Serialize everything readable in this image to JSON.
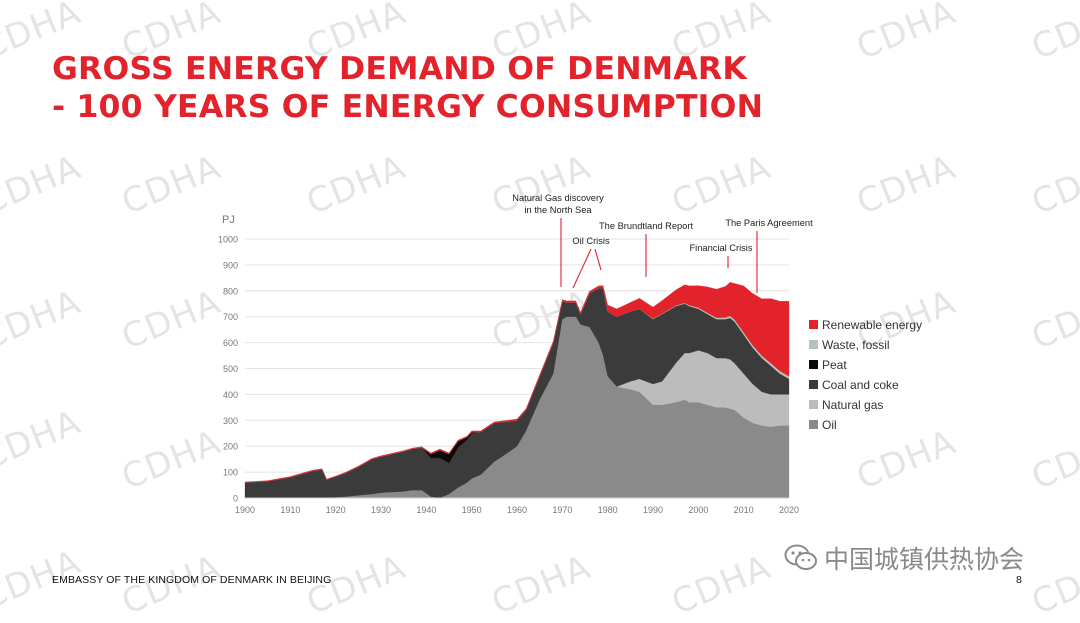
{
  "slide": {
    "title_line1": "GROSS ENERGY DEMAND OF DENMARK",
    "title_line2": "- 100 YEARS OF ENERGY CONSUMPTION",
    "footer": "EMBASSY OF THE KINGDOM OF DENMARK IN BEIJING",
    "page_number": "8",
    "watermark": "CDHA",
    "wechat_label": "中国城镇供热协会",
    "wechat_icon": "wechat-icon"
  },
  "chart_data": {
    "type": "area",
    "stacked": true,
    "ylabel": "PJ",
    "xlabel": "",
    "xlim": [
      1900,
      2020
    ],
    "ylim": [
      0,
      1000
    ],
    "x_ticks": [
      1900,
      1910,
      1920,
      1930,
      1940,
      1950,
      1960,
      1970,
      1980,
      1990,
      2000,
      2010,
      2020
    ],
    "y_ticks": [
      0,
      100,
      200,
      300,
      400,
      500,
      600,
      700,
      800,
      900,
      1000
    ],
    "grid": "horizontal",
    "legend_position": "right",
    "x": [
      1900,
      1905,
      1910,
      1915,
      1917,
      1918,
      1920,
      1922,
      1925,
      1928,
      1930,
      1935,
      1937,
      1939,
      1941,
      1943,
      1945,
      1947,
      1949,
      1950,
      1952,
      1955,
      1958,
      1960,
      1962,
      1965,
      1968,
      1970,
      1971,
      1973,
      1974,
      1976,
      1978,
      1979,
      1980,
      1982,
      1985,
      1987,
      1990,
      1992,
      1995,
      1997,
      1998,
      2000,
      2002,
      2004,
      2006,
      2007,
      2008,
      2010,
      2012,
      2014,
      2016,
      2018,
      2019,
      2020
    ],
    "series": [
      {
        "name": "Oil",
        "color": "#8a8a8a",
        "values": [
          0,
          0,
          0,
          0,
          0,
          1,
          3,
          5,
          10,
          15,
          20,
          25,
          30,
          30,
          5,
          0,
          15,
          40,
          60,
          75,
          90,
          140,
          175,
          200,
          260,
          380,
          480,
          690,
          700,
          700,
          670,
          660,
          600,
          550,
          470,
          430,
          420,
          410,
          360,
          360,
          370,
          380,
          370,
          370,
          360,
          350,
          350,
          345,
          340,
          310,
          290,
          280,
          275,
          280,
          280,
          280
        ]
      },
      {
        "name": "Natural gas",
        "color": "#bcbcbc",
        "values": [
          0,
          0,
          0,
          0,
          0,
          0,
          0,
          0,
          0,
          0,
          0,
          0,
          0,
          0,
          0,
          0,
          0,
          0,
          0,
          0,
          0,
          0,
          0,
          0,
          0,
          0,
          0,
          0,
          0,
          0,
          0,
          0,
          0,
          0,
          0,
          0,
          30,
          50,
          80,
          90,
          150,
          180,
          190,
          200,
          200,
          190,
          190,
          190,
          180,
          170,
          150,
          130,
          125,
          120,
          120,
          120
        ]
      },
      {
        "name": "Coal and coke",
        "color": "#3b3b3b",
        "values": [
          60,
          65,
          80,
          105,
          110,
          70,
          80,
          90,
          110,
          135,
          140,
          155,
          160,
          165,
          150,
          155,
          120,
          155,
          165,
          175,
          165,
          150,
          120,
          100,
          80,
          90,
          120,
          70,
          55,
          55,
          40,
          130,
          210,
          260,
          250,
          270,
          270,
          270,
          250,
          260,
          220,
          190,
          180,
          160,
          150,
          150,
          150,
          160,
          160,
          150,
          140,
          130,
          110,
          80,
          70,
          60
        ]
      },
      {
        "name": "Peat",
        "color": "#0a0a0a",
        "values": [
          0,
          0,
          0,
          0,
          0,
          0,
          0,
          0,
          0,
          0,
          0,
          0,
          0,
          0,
          15,
          30,
          35,
          25,
          10,
          5,
          0,
          0,
          0,
          0,
          0,
          0,
          0,
          0,
          0,
          0,
          0,
          0,
          0,
          0,
          0,
          0,
          0,
          0,
          0,
          0,
          0,
          0,
          0,
          0,
          0,
          0,
          0,
          0,
          0,
          0,
          0,
          0,
          0,
          0,
          0,
          0
        ]
      },
      {
        "name": "Waste, fossil",
        "color": "#b5c3b8",
        "values": [
          0,
          0,
          0,
          0,
          0,
          0,
          0,
          0,
          0,
          0,
          0,
          0,
          0,
          0,
          0,
          0,
          0,
          0,
          0,
          0,
          0,
          0,
          0,
          0,
          0,
          0,
          0,
          0,
          0,
          0,
          0,
          0,
          0,
          0,
          0,
          0,
          0,
          1,
          2,
          2,
          3,
          3,
          4,
          5,
          5,
          6,
          7,
          8,
          8,
          9,
          9,
          9,
          10,
          10,
          10,
          10
        ]
      },
      {
        "name": "Renewable energy",
        "color": "#e3232c",
        "values": [
          2,
          2,
          3,
          3,
          3,
          2,
          2,
          3,
          3,
          3,
          3,
          3,
          3,
          3,
          4,
          4,
          4,
          4,
          4,
          4,
          4,
          4,
          5,
          5,
          5,
          6,
          6,
          6,
          6,
          6,
          7,
          8,
          9,
          10,
          25,
          30,
          35,
          40,
          45,
          50,
          60,
          70,
          75,
          85,
          100,
          110,
          120,
          130,
          140,
          180,
          200,
          220,
          250,
          270,
          280,
          290
        ]
      }
    ],
    "annotations": [
      {
        "text": "Natural Gas discovery\nin the North Sea",
        "x": 1970
      },
      {
        "text": "Oil Crisis",
        "x": 1973
      },
      {
        "text": "The Brundtland Report",
        "x": 1987
      },
      {
        "text": "Financial Crisis",
        "x": 2007
      },
      {
        "text": "The Paris Agreement",
        "x": 2015
      }
    ]
  }
}
